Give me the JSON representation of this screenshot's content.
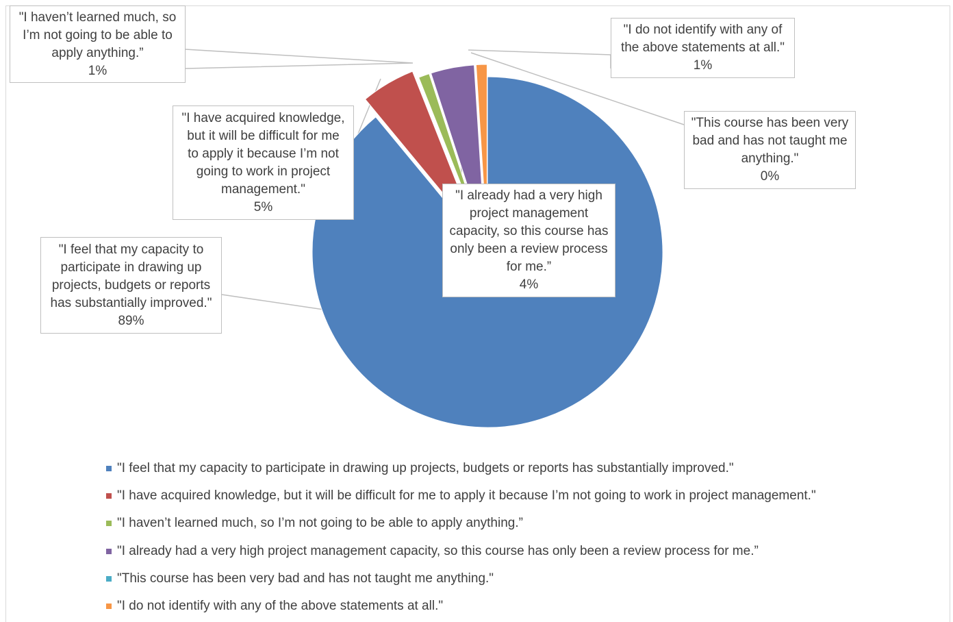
{
  "chart_data": {
    "type": "pie",
    "title": "",
    "slices": [
      {
        "label": "\"I feel that my capacity to participate in drawing up projects, budgets or reports has substantially improved.\"",
        "callout_lines": [
          "\"I feel that my capacity to",
          "participate in drawing up",
          "projects, budgets or reports",
          "has substantially improved.\""
        ],
        "value": 89,
        "value_label": "89%",
        "color": "#4F81BD"
      },
      {
        "label": "\"I have acquired knowledge, but it will be difficult for me to apply it because I’m not going to work in project management.\"",
        "callout_lines": [
          "\"I have acquired knowledge,",
          "but it will be difficult for me",
          "to apply it because I’m not",
          "going to work in project",
          "management.\""
        ],
        "value": 5,
        "value_label": "5%",
        "color": "#C0504D"
      },
      {
        "label": "\"I haven’t learned much, so I’m not going to be able to apply anything.”",
        "callout_lines": [
          "\"I haven’t learned much, so",
          "I’m not going to be able to",
          "apply anything.”"
        ],
        "value": 1,
        "value_label": "1%",
        "color": "#9BBB59"
      },
      {
        "label": "\"I already had a very high project management capacity, so this course has only been a review process for me.”",
        "callout_lines": [
          "\"I already had a very high",
          "project management",
          "capacity, so this course has",
          "only been a review process",
          "for me.”"
        ],
        "value": 4,
        "value_label": "4%",
        "color": "#8064A2"
      },
      {
        "label": "\"This course has been very bad and has not taught me anything.\"",
        "callout_lines": [
          "\"This course has been very",
          "bad and has not taught me",
          "anything.\""
        ],
        "value": 0,
        "value_label": "0%",
        "color": "#4BACC6"
      },
      {
        "label": "\"I do not identify with any of the above statements at all.\"",
        "callout_lines": [
          "\"I do not identify with any of",
          "the above statements at all.\""
        ],
        "value": 1,
        "value_label": "1%",
        "color": "#F79646"
      }
    ],
    "legend_position": "bottom"
  }
}
